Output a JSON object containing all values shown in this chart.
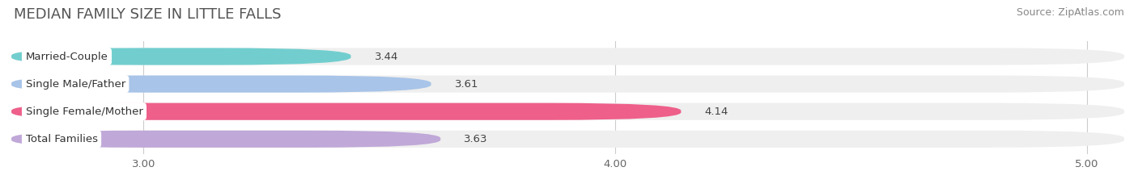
{
  "title": "MEDIAN FAMILY SIZE IN LITTLE FALLS",
  "source": "Source: ZipAtlas.com",
  "categories": [
    "Married-Couple",
    "Single Male/Father",
    "Single Female/Mother",
    "Total Families"
  ],
  "values": [
    3.44,
    3.61,
    4.14,
    3.63
  ],
  "bar_colors": [
    "#72cece",
    "#a8c4e8",
    "#ee5f8a",
    "#c0a8d8"
  ],
  "xlim": [
    2.72,
    5.08
  ],
  "xstart": 2.72,
  "xend": 5.08,
  "xticks": [
    3.0,
    4.0,
    5.0
  ],
  "xtick_labels": [
    "3.00",
    "4.00",
    "5.00"
  ],
  "background_color": "#ffffff",
  "bar_bg_color": "#efefef",
  "title_fontsize": 13,
  "label_fontsize": 9.5,
  "value_fontsize": 9.5,
  "source_fontsize": 9,
  "bar_height": 0.62,
  "bar_gap": 0.38
}
